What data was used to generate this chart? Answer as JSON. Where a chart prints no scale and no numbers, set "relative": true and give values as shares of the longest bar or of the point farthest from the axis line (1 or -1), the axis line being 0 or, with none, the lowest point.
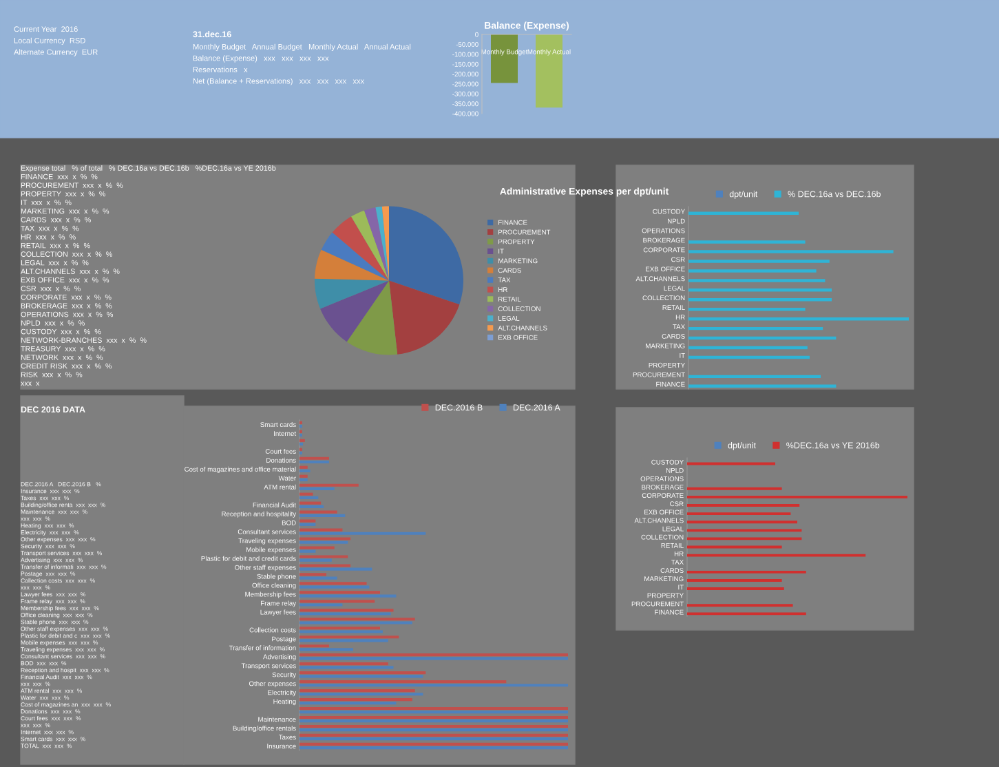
{
  "chart_data": [
    {
      "type": "other",
      "annotations": [
        "Current Year  2016",
        "Local Currency  RSD",
        "Alternate Currency  EUR"
      ]
    },
    {
      "type": "other",
      "title": "31.dec.16",
      "annotations": [
        "Monthly Budget   Annual Budget   Monthly Actual   Annual Actual",
        "Balance (Expense)   xxx   xxx   xxx   xxx",
        "Reservations   x",
        "Net (Balance + Reservations)   xxx   xxx   xxx   xxx"
      ]
    },
    {
      "type": "bar",
      "title": "Balance (Expense)",
      "categories": [
        "Monthly Budget",
        "Monthly Actual"
      ],
      "values": [
        -245000,
        -370000
      ],
      "colors": [
        "#77933c",
        "#a3c05f"
      ],
      "ylim": [
        -400000,
        0
      ],
      "yticks": [
        {
          "value": -400000,
          "label": "-400.000"
        },
        {
          "value": -350000,
          "label": "-350.000"
        },
        {
          "value": -300000,
          "label": "-300.000"
        },
        {
          "value": -250000,
          "label": "-250.000"
        },
        {
          "value": -200000,
          "label": "-200.000"
        },
        {
          "value": -150000,
          "label": "-150.000"
        },
        {
          "value": -100000,
          "label": "-100.000"
        },
        {
          "value": -50000,
          "label": "-50.000"
        },
        0
      ]
    },
    {
      "type": "other",
      "annotations": [
        "Expense total   % of total   % DEC.16a vs DEC.16b   %DEC.16a vs YE 2016b",
        "FINANCE  xxx  x  %  %",
        "PROCUREMENT  xxx  x  %  %",
        "PROPERTY  xxx  x  %  %",
        "IT  xxx  x  %  %",
        "MARKETING  xxx  x  %  %",
        "CARDS  xxx  x  %  %",
        "TAX  xxx  x  %  %",
        "HR  xxx  x  %  %",
        "RETAIL  xxx  x  %  %",
        "COLLECTION  xxx  x  %  %",
        "LEGAL  xxx  x  %  %",
        "ALT.CHANNELS  xxx  x  %  %",
        "EXB OFFICE  xxx  x  %  %",
        "CSR  xxx  x  %  %",
        "CORPORATE  xxx  x  %  %",
        "BROKERAGE  xxx  x  %  %",
        "OPERATIONS  xxx  x  %  %",
        "NPLD  xxx  x  %  %",
        "CUSTODY  xxx  x  %  %",
        "NETWORK-BRANCHES  xxx  x  %  %",
        "TREASURY  xxx  x  %  %",
        "NETWORK  xxx  x  %  %",
        "CREDIT RISK  xxx  x  %  %",
        "RISK  xxx  x  %  %",
        "xxx  x"
      ]
    },
    {
      "type": "pie",
      "title": "Administrative Expenses per dpt/unit",
      "legend": "right",
      "categories": [
        "FINANCE",
        "PROCUREMENT",
        "PROPERTY",
        "IT",
        "MARKETING",
        "CARDS",
        "TAX",
        "HR",
        "RETAIL",
        "COLLECTION",
        "LEGAL",
        "ALT.CHANNELS",
        "EXB OFFICE"
      ],
      "values": [
        30.2,
        18,
        11.4,
        9.2,
        6.6,
        6.4,
        4.4,
        5.3,
        3.1,
        2.5,
        1.4,
        1.5,
        0
      ],
      "colors": [
        "#3e6aa4",
        "#a34040",
        "#7f9a48",
        "#6a5190",
        "#3f8ea8",
        "#d47f3a",
        "#4a7bc0",
        "#c24f4c",
        "#9cbb5a",
        "#8566a8",
        "#4bb0cc",
        "#f59a4e",
        "#7d9ed4"
      ]
    },
    {
      "type": "bar",
      "orientation": "horizontal",
      "relative": true,
      "legend": "top",
      "categories": [
        "CUSTODY",
        "NPLD",
        "OPERATIONS",
        "BROKERAGE",
        "CORPORATE",
        "CSR",
        "EXB OFFICE",
        "ALT.CHANNELS",
        "LEGAL",
        "COLLECTION",
        "RETAIL",
        "HR",
        "TAX",
        "CARDS",
        "MARKETING",
        "IT",
        "PROPERTY",
        "PROCUREMENT",
        "FINANCE"
      ],
      "series": [
        {
          "name": "dpt/unit",
          "color": "#4f81bd",
          "values": [
            null,
            null,
            null,
            null,
            null,
            null,
            null,
            null,
            null,
            null,
            null,
            null,
            null,
            null,
            null,
            null,
            null,
            null,
            null
          ]
        },
        {
          "name": "% DEC.16a vs DEC.16b",
          "color": "#2fb4d6",
          "values": [
            0.5,
            null,
            null,
            0.53,
            0.93,
            0.64,
            0.58,
            0.62,
            0.65,
            0.65,
            0.53,
            1,
            0.61,
            0.67,
            0.54,
            0.55,
            null,
            0.6,
            0.67
          ]
        }
      ]
    },
    {
      "type": "other",
      "title": "DEC 2016 DATA",
      "annotations": [
        "DEC.2016 A   DEC.2016 B   %",
        "Insurance  xxx  xxx  %",
        "Taxes  xxx  xxx  %",
        "Building/office renta  xxx  xxx  %",
        "Maintenance  xxx  xxx  %",
        "xxx  xxx  %",
        "Heating  xxx  xxx  %",
        "Electricity  xxx  xxx  %",
        "Other expenses  xxx  xxx  %",
        "Security  xxx  xxx  %",
        "Transport services  xxx  xxx  %",
        "Advertising  xxx  xxx  %",
        "Transfer of informati  xxx  xxx  %",
        "Postage  xxx  xxx  %",
        "Collection costs  xxx  xxx  %",
        "xxx  xxx  %",
        "Lawyer fees  xxx  xxx  %",
        "Frame relay  xxx  xxx  %",
        "Membership fees  xxx  xxx  %",
        "Office cleaning  xxx  xxx  %",
        "Stable phone  xxx  xxx  %",
        "Other staff expenses  xxx  xxx  %",
        "Plastic for debit and c  xxx  xxx  %",
        "Mobile expenses  xxx  xxx  %",
        "Traveling expenses  xxx  xxx  %",
        "Consultant services  xxx  xxx  %",
        "BOD  xxx  xxx  %",
        "Reception and hospit  xxx  xxx  %",
        "Financial Audit  xxx  xxx  %",
        "xxx  xxx  %",
        "ATM rental  xxx  xxx  %",
        "Water  xxx  xxx  %",
        "Cost of magazines an  xxx  xxx  %",
        "Donations  xxx  xxx  %",
        "Court fees  xxx  xxx  %",
        "xxx  xxx  %",
        "Internet  xxx  xxx  %",
        "Smart cards  xxx  xxx  %",
        "TOTAL  xxx  xxx  %"
      ]
    },
    {
      "type": "bar",
      "orientation": "horizontal",
      "relative": true,
      "legend": "top right",
      "categories": [
        "Smart cards",
        "Internet",
        null,
        "Court fees",
        "Donations",
        "Cost of magazines and office material",
        "Water",
        "ATM rental",
        null,
        "Financial Audit",
        "Reception and hospitality",
        "BOD",
        "Consultant services",
        "Traveling expenses",
        "Mobile expenses",
        "Plastic for debit and credit cards",
        "Other staff expenses",
        "Stable phone",
        "Office cleaning",
        "Membership fees",
        "Frame relay",
        "Lawyer fees",
        null,
        "Collection costs",
        "Postage",
        "Transfer of information",
        "Advertising",
        "Transport services",
        "Security",
        "Other expenses",
        "Electricity",
        "Heating",
        null,
        "Maintenance",
        "Building/office rentals",
        "Taxes",
        "Insurance"
      ],
      "series": [
        {
          "name": "DEC.2016 B",
          "color": "#c0504d",
          "values": [
            0.01,
            0.01,
            0.02,
            0.01,
            0.11,
            0.03,
            0.03,
            0.22,
            0.05,
            0.08,
            0.14,
            0.06,
            0.16,
            0.19,
            0.13,
            0.18,
            0.19,
            0.1,
            0.25,
            0.3,
            0.28,
            0.35,
            0.43,
            0.3,
            0.37,
            0.11,
            1,
            0.33,
            0.47,
            0.77,
            0.43,
            0.42,
            1,
            1,
            1,
            1,
            1
          ]
        },
        {
          "name": "DEC.2016 A",
          "color": "#4f81bd",
          "values": [
            0.01,
            0.01,
            0.013,
            0.01,
            0.11,
            0.04,
            0.03,
            0.13,
            0.07,
            0.09,
            0.17,
            0.06,
            0.47,
            0.18,
            0.06,
            0.12,
            0.27,
            0.14,
            0.26,
            0.36,
            0.16,
            0.34,
            0.42,
            0.31,
            0.33,
            0.2,
            1,
            0.35,
            0.46,
            1,
            0.46,
            0.36,
            1,
            1,
            1,
            1,
            1
          ]
        }
      ]
    },
    {
      "type": "bar",
      "orientation": "horizontal",
      "relative": true,
      "legend": "top",
      "categories": [
        "CUSTODY",
        "NPLD",
        "OPERATIONS",
        "BROKERAGE",
        "CORPORATE",
        "CSR",
        "EXB OFFICE",
        "ALT.CHANNELS",
        "LEGAL",
        "COLLECTION",
        "RETAIL",
        "HR",
        "TAX",
        "CARDS",
        "MARKETING",
        "IT",
        "PROPERTY",
        "PROCUREMENT",
        "FINANCE"
      ],
      "series": [
        {
          "name": "dpt/unit",
          "color": "#4f81bd",
          "values": [
            null,
            null,
            null,
            null,
            null,
            null,
            null,
            null,
            null,
            null,
            null,
            null,
            null,
            null,
            null,
            null,
            null,
            null,
            null
          ]
        },
        {
          "name": "%DEC.16a vs YE 2016b",
          "color": "#d0302f",
          "values": [
            0.4,
            null,
            null,
            0.43,
            1,
            0.51,
            0.47,
            0.5,
            0.52,
            0.52,
            0.43,
            0.81,
            null,
            0.54,
            0.43,
            0.44,
            null,
            0.48,
            0.54
          ]
        }
      ]
    }
  ]
}
